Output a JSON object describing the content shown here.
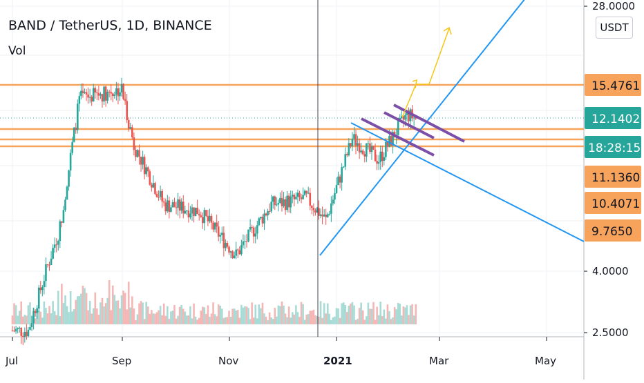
{
  "header": {
    "title": "BAND / TetherUS, 1D, BINANCE",
    "indicator": "Vol"
  },
  "price_scale": {
    "unit": "USDT",
    "labels": [
      "28.0000",
      "4.0000",
      "2.5000"
    ]
  },
  "time_axis": {
    "labels": [
      "Jul",
      "Sep",
      "Nov",
      "2021",
      "Mar",
      "May"
    ]
  },
  "price_tags": [
    {
      "text": "15.4761",
      "color": "#f7a35c",
      "text_color": "#131722"
    },
    {
      "text": "12.1402",
      "color": "#26a69a",
      "text_color": "#ffffff"
    },
    {
      "text": "18:28:15",
      "color": "#26a69a",
      "text_color": "#ffffff"
    },
    {
      "text": "11.1360",
      "color": "#f7a35c",
      "text_color": "#131722"
    },
    {
      "text": "10.4071",
      "color": "#f7a35c",
      "text_color": "#131722"
    },
    {
      "text": "9.7650",
      "color": "#f7a35c",
      "text_color": "#131722"
    }
  ],
  "colors": {
    "up": "#26a69a",
    "down": "#ef5350",
    "horizontal_levels": "#f7a35c",
    "trendlines": "#2196f3",
    "channel": "#7b4ea8",
    "projection": "#f5c518"
  },
  "chart_data": {
    "type": "candlestick",
    "symbol": "BAND / TetherUS",
    "interval": "1D",
    "exchange": "BINANCE",
    "y_scale": "log",
    "x_range": [
      "2020-07-01",
      "2021-05-20"
    ],
    "horizontal_levels": [
      15.4761,
      11.136,
      10.4071,
      9.765
    ],
    "last_price": 12.1402,
    "countdown": "18:28:15",
    "approx_close_path": [
      {
        "date": "2020-07-10",
        "close": 2.6
      },
      {
        "date": "2020-07-20",
        "close": 4.0
      },
      {
        "date": "2020-07-28",
        "close": 5.5
      },
      {
        "date": "2020-08-08",
        "close": 14.0
      },
      {
        "date": "2020-08-20",
        "close": 14.5
      },
      {
        "date": "2020-09-01",
        "close": 15.0
      },
      {
        "date": "2020-09-08",
        "close": 10.0
      },
      {
        "date": "2020-09-25",
        "close": 6.5
      },
      {
        "date": "2020-10-15",
        "close": 6.2
      },
      {
        "date": "2020-11-05",
        "close": 4.5
      },
      {
        "date": "2020-11-25",
        "close": 6.5
      },
      {
        "date": "2020-12-15",
        "close": 6.8
      },
      {
        "date": "2020-12-26",
        "close": 5.8
      },
      {
        "date": "2021-01-10",
        "close": 10.5
      },
      {
        "date": "2021-01-25",
        "close": 9.0
      },
      {
        "date": "2021-02-10",
        "close": 12.5
      },
      {
        "date": "2021-02-15",
        "close": 12.1402
      }
    ]
  }
}
